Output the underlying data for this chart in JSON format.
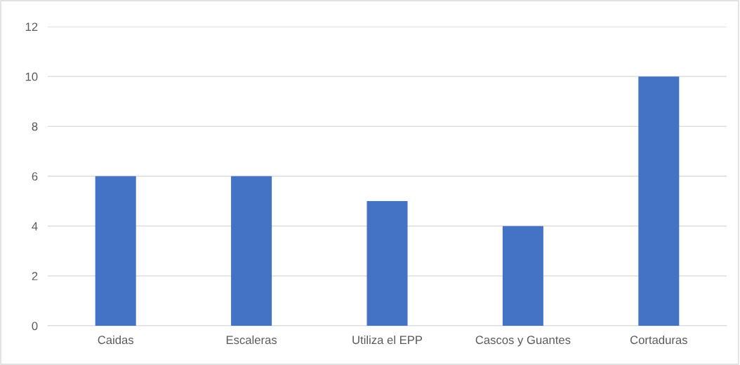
{
  "chart_data": {
    "type": "bar",
    "categories": [
      "Caidas",
      "Escaleras",
      "Utiliza el EPP",
      "Cascos y Guantes",
      "Cortaduras"
    ],
    "values": [
      6,
      6,
      5,
      4,
      10
    ],
    "color": "#4472c4",
    "ylim": [
      0,
      12
    ],
    "yticks": [
      0,
      2,
      4,
      6,
      8,
      10,
      12
    ],
    "grid": "y"
  }
}
